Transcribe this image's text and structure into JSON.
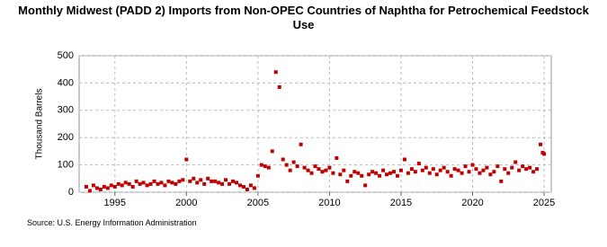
{
  "chart_data": {
    "type": "scatter",
    "title": "Monthly Midwest (PADD 2) Imports from Non-OPEC Countries of Naphtha for Petrochemical Feedstock Use",
    "y_label": "Thousand Barrels",
    "source": "Source: U.S. Energy Information Administration",
    "color": "#c00000",
    "grid": true,
    "xlim": [
      1992.5,
      2025.5
    ],
    "xticks": [
      1995,
      2000,
      2005,
      2010,
      2015,
      2020,
      2025
    ],
    "ylim": [
      0,
      500
    ],
    "yticks": [
      0,
      100,
      200,
      300,
      400,
      500
    ],
    "x": [
      1993,
      1993.25,
      1993.5,
      1993.75,
      1994,
      1994.25,
      1994.5,
      1994.75,
      1995,
      1995.25,
      1995.5,
      1995.75,
      1996,
      1996.25,
      1996.5,
      1996.75,
      1997,
      1997.25,
      1997.5,
      1997.75,
      1998,
      1998.25,
      1998.5,
      1998.75,
      1999,
      1999.25,
      1999.5,
      1999.75,
      2000,
      2000.25,
      2000.5,
      2000.75,
      2001,
      2001.25,
      2001.5,
      2001.75,
      2002,
      2002.25,
      2002.5,
      2002.75,
      2003,
      2003.25,
      2003.5,
      2003.75,
      2004,
      2004.25,
      2004.5,
      2004.75,
      2005,
      2005.25,
      2005.5,
      2005.75,
      2006,
      2006.25,
      2006.5,
      2006.75,
      2007,
      2007.25,
      2007.5,
      2007.75,
      2008,
      2008.25,
      2008.5,
      2008.75,
      2009,
      2009.25,
      2009.5,
      2009.75,
      2010,
      2010.25,
      2010.5,
      2010.75,
      2011,
      2011.25,
      2011.5,
      2011.75,
      2012,
      2012.25,
      2012.5,
      2012.75,
      2013,
      2013.25,
      2013.5,
      2013.75,
      2014,
      2014.25,
      2014.5,
      2014.75,
      2015,
      2015.25,
      2015.5,
      2015.75,
      2016,
      2016.25,
      2016.5,
      2016.75,
      2017,
      2017.25,
      2017.5,
      2017.75,
      2018,
      2018.25,
      2018.5,
      2018.75,
      2019,
      2019.25,
      2019.5,
      2019.75,
      2020,
      2020.25,
      2020.5,
      2020.75,
      2021,
      2021.25,
      2021.5,
      2021.75,
      2022,
      2022.25,
      2022.5,
      2022.75,
      2023,
      2023.25,
      2023.5,
      2023.75,
      2024,
      2024.25,
      2024.5,
      2024.75,
      2024.9,
      2025
    ],
    "values": [
      20,
      5,
      25,
      15,
      10,
      20,
      15,
      25,
      20,
      30,
      25,
      35,
      30,
      20,
      40,
      30,
      35,
      25,
      30,
      40,
      30,
      35,
      25,
      40,
      35,
      30,
      40,
      45,
      120,
      40,
      50,
      35,
      45,
      30,
      50,
      40,
      40,
      35,
      30,
      45,
      30,
      40,
      35,
      25,
      20,
      10,
      25,
      15,
      60,
      100,
      95,
      90,
      150,
      440,
      385,
      120,
      100,
      80,
      110,
      95,
      175,
      90,
      80,
      70,
      95,
      85,
      75,
      80,
      90,
      70,
      125,
      65,
      80,
      40,
      60,
      75,
      70,
      60,
      25,
      65,
      75,
      70,
      60,
      80,
      65,
      70,
      75,
      60,
      80,
      120,
      70,
      85,
      75,
      105,
      80,
      90,
      70,
      85,
      65,
      80,
      90,
      75,
      60,
      85,
      80,
      70,
      95,
      75,
      100,
      85,
      70,
      80,
      90,
      65,
      75,
      95,
      40,
      85,
      70,
      90,
      110,
      80,
      95,
      85,
      90,
      75,
      85,
      175,
      145,
      140
    ]
  }
}
